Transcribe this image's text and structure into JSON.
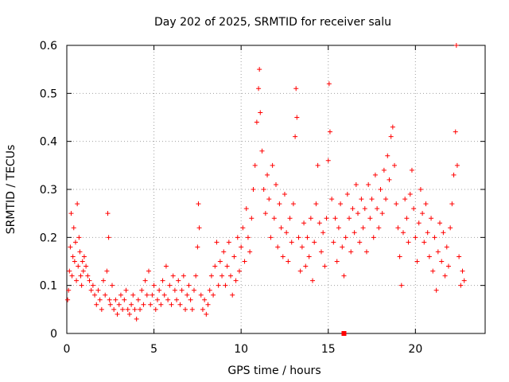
{
  "chart_data": {
    "type": "scatter",
    "title": "Day 202 of 2025, SRMTID for receiver salu",
    "xlabel": "GPS time / hours",
    "ylabel": "SRMTID / TECUs",
    "xlim": [
      0,
      24
    ],
    "ylim": [
      0,
      0.6
    ],
    "xticks": [
      0,
      5,
      10,
      15,
      20
    ],
    "yticks": [
      0,
      0.1,
      0.2,
      0.3,
      0.4,
      0.5,
      0.6
    ],
    "grid": true,
    "marker": "plus",
    "color": "#ff0000",
    "series": [
      {
        "name": "SRMTID",
        "points": [
          [
            0.05,
            0.07
          ],
          [
            0.1,
            0.09
          ],
          [
            0.15,
            0.13
          ],
          [
            0.2,
            0.18
          ],
          [
            0.25,
            0.25
          ],
          [
            0.3,
            0.12
          ],
          [
            0.35,
            0.16
          ],
          [
            0.4,
            0.22
          ],
          [
            0.45,
            0.15
          ],
          [
            0.5,
            0.19
          ],
          [
            0.55,
            0.11
          ],
          [
            0.6,
            0.27
          ],
          [
            0.65,
            0.14
          ],
          [
            0.7,
            0.2
          ],
          [
            0.75,
            0.17
          ],
          [
            0.8,
            0.12
          ],
          [
            0.85,
            0.1
          ],
          [
            0.9,
            0.15
          ],
          [
            0.95,
            0.13
          ],
          [
            1.0,
            0.16
          ],
          [
            1.1,
            0.14
          ],
          [
            1.2,
            0.12
          ],
          [
            1.3,
            0.11
          ],
          [
            1.4,
            0.09
          ],
          [
            1.5,
            0.1
          ],
          [
            1.6,
            0.08
          ],
          [
            1.7,
            0.06
          ],
          [
            1.8,
            0.09
          ],
          [
            1.9,
            0.07
          ],
          [
            2.0,
            0.05
          ],
          [
            2.1,
            0.11
          ],
          [
            2.2,
            0.08
          ],
          [
            2.3,
            0.13
          ],
          [
            2.35,
            0.25
          ],
          [
            2.4,
            0.2
          ],
          [
            2.45,
            0.07
          ],
          [
            2.5,
            0.06
          ],
          [
            2.6,
            0.1
          ],
          [
            2.7,
            0.05
          ],
          [
            2.8,
            0.07
          ],
          [
            2.9,
            0.04
          ],
          [
            3.0,
            0.06
          ],
          [
            3.1,
            0.08
          ],
          [
            3.2,
            0.05
          ],
          [
            3.3,
            0.07
          ],
          [
            3.4,
            0.09
          ],
          [
            3.5,
            0.05
          ],
          [
            3.6,
            0.04
          ],
          [
            3.7,
            0.06
          ],
          [
            3.8,
            0.08
          ],
          [
            3.9,
            0.05
          ],
          [
            4.0,
            0.03
          ],
          [
            4.1,
            0.07
          ],
          [
            4.2,
            0.05
          ],
          [
            4.3,
            0.09
          ],
          [
            4.4,
            0.06
          ],
          [
            4.5,
            0.11
          ],
          [
            4.6,
            0.08
          ],
          [
            4.7,
            0.13
          ],
          [
            4.8,
            0.06
          ],
          [
            4.9,
            0.08
          ],
          [
            5.0,
            0.1
          ],
          [
            5.1,
            0.05
          ],
          [
            5.2,
            0.07
          ],
          [
            5.3,
            0.09
          ],
          [
            5.4,
            0.06
          ],
          [
            5.5,
            0.11
          ],
          [
            5.6,
            0.08
          ],
          [
            5.7,
            0.14
          ],
          [
            5.8,
            0.07
          ],
          [
            5.9,
            0.1
          ],
          [
            6.0,
            0.06
          ],
          [
            6.1,
            0.12
          ],
          [
            6.2,
            0.09
          ],
          [
            6.3,
            0.07
          ],
          [
            6.4,
            0.11
          ],
          [
            6.5,
            0.06
          ],
          [
            6.6,
            0.09
          ],
          [
            6.7,
            0.12
          ],
          [
            6.8,
            0.05
          ],
          [
            6.9,
            0.08
          ],
          [
            7.0,
            0.1
          ],
          [
            7.1,
            0.07
          ],
          [
            7.2,
            0.05
          ],
          [
            7.3,
            0.09
          ],
          [
            7.4,
            0.12
          ],
          [
            7.5,
            0.18
          ],
          [
            7.55,
            0.27
          ],
          [
            7.6,
            0.22
          ],
          [
            7.7,
            0.08
          ],
          [
            7.8,
            0.05
          ],
          [
            7.9,
            0.07
          ],
          [
            8.0,
            0.04
          ],
          [
            8.1,
            0.06
          ],
          [
            8.2,
            0.09
          ],
          [
            8.3,
            0.12
          ],
          [
            8.4,
            0.08
          ],
          [
            8.5,
            0.14
          ],
          [
            8.6,
            0.19
          ],
          [
            8.7,
            0.1
          ],
          [
            8.8,
            0.15
          ],
          [
            8.9,
            0.12
          ],
          [
            9.0,
            0.17
          ],
          [
            9.1,
            0.1
          ],
          [
            9.2,
            0.14
          ],
          [
            9.3,
            0.19
          ],
          [
            9.4,
            0.12
          ],
          [
            9.5,
            0.08
          ],
          [
            9.6,
            0.16
          ],
          [
            9.7,
            0.11
          ],
          [
            9.8,
            0.2
          ],
          [
            9.9,
            0.13
          ],
          [
            10.0,
            0.18
          ],
          [
            10.1,
            0.22
          ],
          [
            10.2,
            0.15
          ],
          [
            10.3,
            0.26
          ],
          [
            10.4,
            0.2
          ],
          [
            10.5,
            0.17
          ],
          [
            10.6,
            0.24
          ],
          [
            10.7,
            0.3
          ],
          [
            10.8,
            0.35
          ],
          [
            10.9,
            0.44
          ],
          [
            11.0,
            0.51
          ],
          [
            11.05,
            0.55
          ],
          [
            11.1,
            0.46
          ],
          [
            11.2,
            0.38
          ],
          [
            11.3,
            0.3
          ],
          [
            11.4,
            0.25
          ],
          [
            11.5,
            0.33
          ],
          [
            11.6,
            0.28
          ],
          [
            11.7,
            0.2
          ],
          [
            11.8,
            0.35
          ],
          [
            11.9,
            0.24
          ],
          [
            12.0,
            0.31
          ],
          [
            12.1,
            0.18
          ],
          [
            12.2,
            0.27
          ],
          [
            12.3,
            0.22
          ],
          [
            12.4,
            0.16
          ],
          [
            12.5,
            0.29
          ],
          [
            12.6,
            0.21
          ],
          [
            12.7,
            0.15
          ],
          [
            12.8,
            0.24
          ],
          [
            12.9,
            0.19
          ],
          [
            13.0,
            0.27
          ],
          [
            13.1,
            0.41
          ],
          [
            13.15,
            0.51
          ],
          [
            13.2,
            0.45
          ],
          [
            13.3,
            0.2
          ],
          [
            13.4,
            0.13
          ],
          [
            13.5,
            0.18
          ],
          [
            13.6,
            0.23
          ],
          [
            13.7,
            0.14
          ],
          [
            13.8,
            0.2
          ],
          [
            13.9,
            0.16
          ],
          [
            14.0,
            0.24
          ],
          [
            14.1,
            0.11
          ],
          [
            14.2,
            0.19
          ],
          [
            14.3,
            0.27
          ],
          [
            14.4,
            0.35
          ],
          [
            14.5,
            0.23
          ],
          [
            14.6,
            0.17
          ],
          [
            14.7,
            0.21
          ],
          [
            14.8,
            0.14
          ],
          [
            14.9,
            0.24
          ],
          [
            15.0,
            0.36
          ],
          [
            15.05,
            0.52
          ],
          [
            15.1,
            0.42
          ],
          [
            15.2,
            0.28
          ],
          [
            15.3,
            0.19
          ],
          [
            15.4,
            0.24
          ],
          [
            15.5,
            0.15
          ],
          [
            15.6,
            0.22
          ],
          [
            15.7,
            0.27
          ],
          [
            15.8,
            0.18
          ],
          [
            15.9,
            0.12
          ],
          [
            16.0,
            0.2
          ],
          [
            16.1,
            0.29
          ],
          [
            16.2,
            0.24
          ],
          [
            16.3,
            0.17
          ],
          [
            16.4,
            0.26
          ],
          [
            16.5,
            0.21
          ],
          [
            16.6,
            0.31
          ],
          [
            16.7,
            0.25
          ],
          [
            16.8,
            0.19
          ],
          [
            16.9,
            0.28
          ],
          [
            17.0,
            0.22
          ],
          [
            17.1,
            0.26
          ],
          [
            17.2,
            0.17
          ],
          [
            17.3,
            0.31
          ],
          [
            17.4,
            0.24
          ],
          [
            17.5,
            0.28
          ],
          [
            17.6,
            0.2
          ],
          [
            17.7,
            0.33
          ],
          [
            17.8,
            0.26
          ],
          [
            17.9,
            0.22
          ],
          [
            18.0,
            0.3
          ],
          [
            18.1,
            0.25
          ],
          [
            18.2,
            0.34
          ],
          [
            18.3,
            0.28
          ],
          [
            18.4,
            0.37
          ],
          [
            18.5,
            0.32
          ],
          [
            18.6,
            0.41
          ],
          [
            18.7,
            0.43
          ],
          [
            18.8,
            0.35
          ],
          [
            18.9,
            0.27
          ],
          [
            19.0,
            0.22
          ],
          [
            19.1,
            0.16
          ],
          [
            19.2,
            0.1
          ],
          [
            19.3,
            0.21
          ],
          [
            19.4,
            0.28
          ],
          [
            19.5,
            0.24
          ],
          [
            19.6,
            0.19
          ],
          [
            19.7,
            0.29
          ],
          [
            19.8,
            0.34
          ],
          [
            19.9,
            0.26
          ],
          [
            20.0,
            0.2
          ],
          [
            20.1,
            0.15
          ],
          [
            20.2,
            0.23
          ],
          [
            20.3,
            0.3
          ],
          [
            20.4,
            0.25
          ],
          [
            20.5,
            0.19
          ],
          [
            20.6,
            0.27
          ],
          [
            20.7,
            0.21
          ],
          [
            20.8,
            0.16
          ],
          [
            20.9,
            0.24
          ],
          [
            21.0,
            0.13
          ],
          [
            21.1,
            0.2
          ],
          [
            21.2,
            0.09
          ],
          [
            21.3,
            0.17
          ],
          [
            21.4,
            0.23
          ],
          [
            21.5,
            0.15
          ],
          [
            21.6,
            0.21
          ],
          [
            21.7,
            0.12
          ],
          [
            21.8,
            0.18
          ],
          [
            21.9,
            0.14
          ],
          [
            22.0,
            0.22
          ],
          [
            22.1,
            0.27
          ],
          [
            22.2,
            0.33
          ],
          [
            22.3,
            0.42
          ],
          [
            22.35,
            0.6
          ],
          [
            22.4,
            0.35
          ],
          [
            22.5,
            0.16
          ],
          [
            22.6,
            0.1
          ],
          [
            22.7,
            0.13
          ],
          [
            22.8,
            0.11
          ]
        ],
        "gap_marker": [
          15.9,
          0.0
        ]
      }
    ]
  }
}
